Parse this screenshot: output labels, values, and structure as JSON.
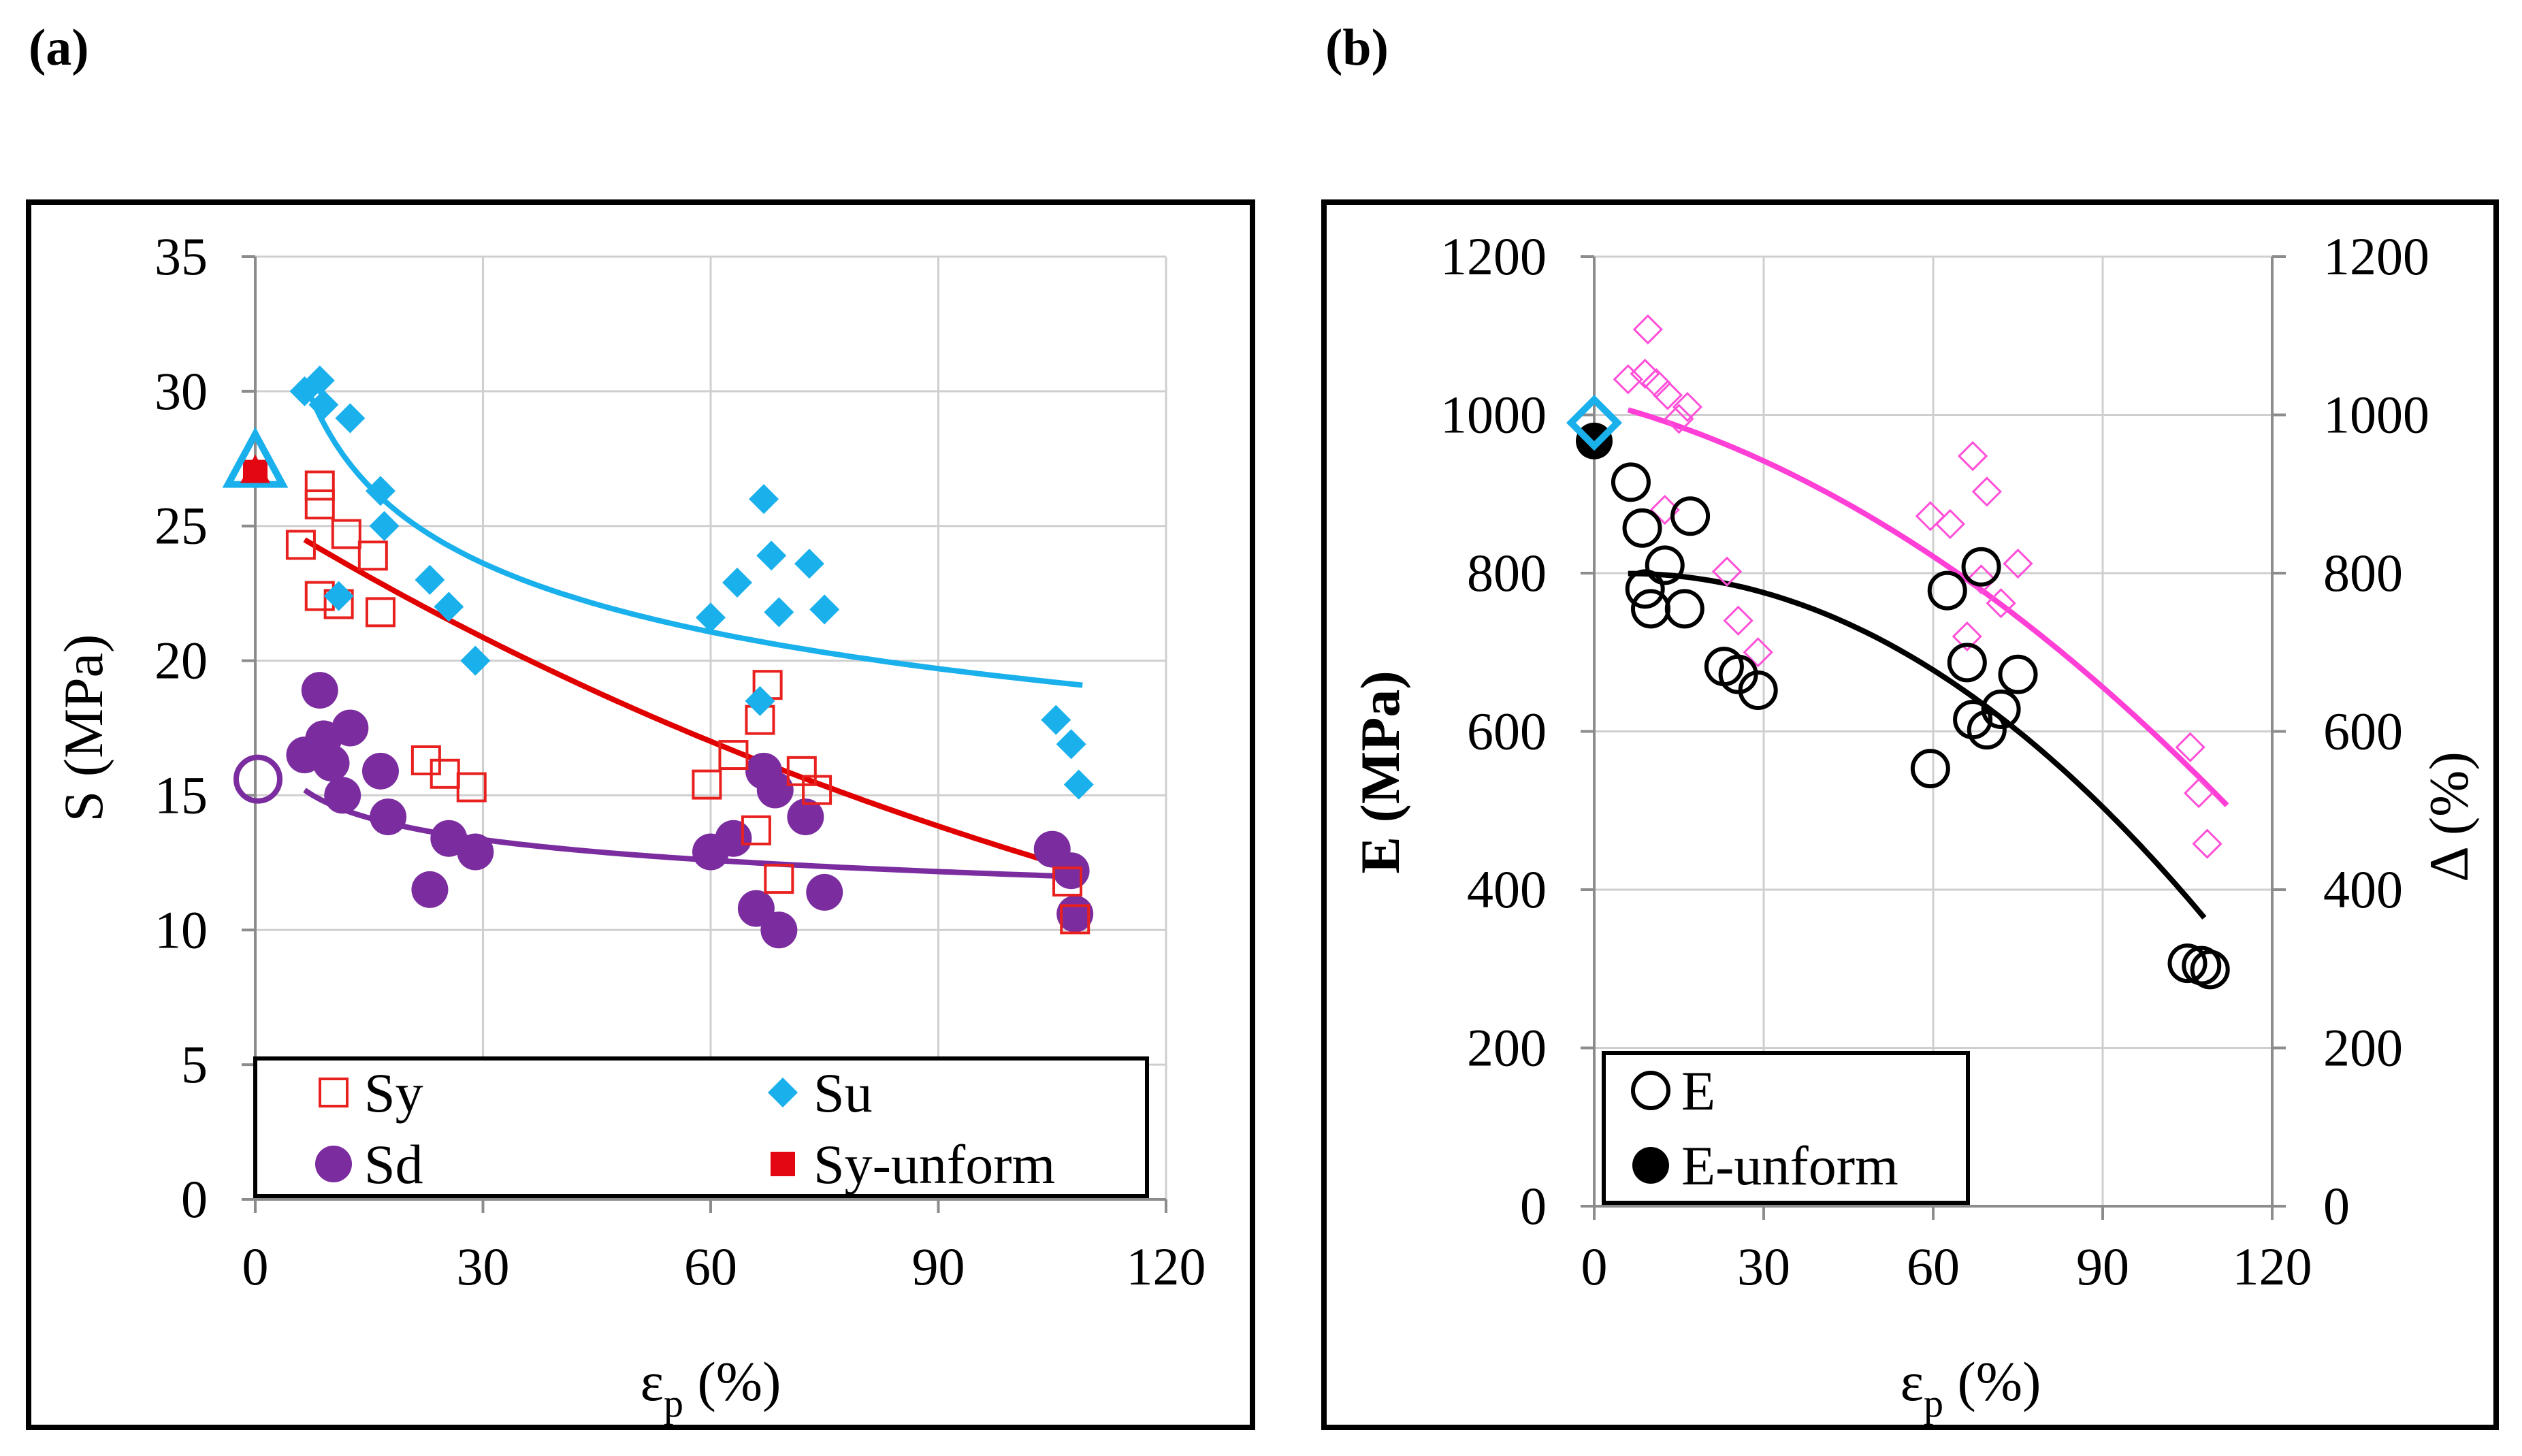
{
  "panel_labels": {
    "a": "(a)",
    "b": "(b)"
  },
  "colors": {
    "sy": "#e8201e",
    "su": "#1ab0ec",
    "sd": "#7b2da0",
    "sy_unform": "#e30613",
    "e": "#000000",
    "delta": "#ff4fd8",
    "su_fit": "#1ab0ec",
    "sy_fit": "#e00000",
    "sd_fit": "#7b2da0",
    "e_fit": "#000000",
    "delta_fit": "#ff3fd6"
  },
  "chart_data": [
    {
      "type": "scatter",
      "panel": "(a)",
      "xlabel_main": "ε",
      "xlabel_sub": "p",
      "xlabel_unit": " (%)",
      "ylabel": "S (MPa)",
      "xlim": [
        0,
        120
      ],
      "ylim": [
        0,
        35
      ],
      "xticks": [
        0,
        30,
        60,
        90,
        120
      ],
      "yticks": [
        0,
        5,
        10,
        15,
        20,
        25,
        30,
        35
      ],
      "grid": true,
      "legend_position": "bottom",
      "legend": [
        {
          "key": "sy",
          "label": "Sy"
        },
        {
          "key": "su",
          "label": "Su"
        },
        {
          "key": "sd",
          "label": "Sd"
        },
        {
          "key": "sy_unform",
          "label": "Sy-unform"
        }
      ],
      "series": [
        {
          "key": "sy",
          "name": "Sy",
          "marker": "open-square",
          "points": [
            [
              6,
              24.3
            ],
            [
              8.5,
              26.5
            ],
            [
              8.5,
              25.8
            ],
            [
              8.5,
              22.4
            ],
            [
              11,
              22.1
            ],
            [
              12,
              24.7
            ],
            [
              15.5,
              23.9
            ],
            [
              16.5,
              21.8
            ],
            [
              22.5,
              16.3
            ],
            [
              25,
              15.8
            ],
            [
              28.5,
              15.3
            ],
            [
              59.5,
              15.4
            ],
            [
              63,
              16.5
            ],
            [
              66,
              13.7
            ],
            [
              66.5,
              17.8
            ],
            [
              67.5,
              19.1
            ],
            [
              69,
              11.9
            ],
            [
              72,
              15.9
            ],
            [
              74,
              15.2
            ],
            [
              107,
              11.8
            ],
            [
              108,
              10.4
            ]
          ]
        },
        {
          "key": "su",
          "name": "Su",
          "marker": "diamond",
          "points": [
            [
              6.5,
              30
            ],
            [
              8.5,
              30.4
            ],
            [
              9,
              29.5
            ],
            [
              12.5,
              29
            ],
            [
              11,
              22.4
            ],
            [
              16.5,
              26.3
            ],
            [
              17,
              25
            ],
            [
              23,
              23
            ],
            [
              25.5,
              22
            ],
            [
              29,
              20
            ],
            [
              60,
              21.6
            ],
            [
              63.5,
              22.9
            ],
            [
              66.5,
              18.5
            ],
            [
              67,
              26
            ],
            [
              68,
              23.9
            ],
            [
              69,
              21.8
            ],
            [
              73,
              23.6
            ],
            [
              75,
              21.9
            ],
            [
              105.5,
              17.8
            ],
            [
              107.5,
              16.9
            ],
            [
              108.5,
              15.4
            ]
          ]
        },
        {
          "key": "sd",
          "name": "Sd",
          "marker": "filled-circle",
          "points": [
            [
              6.5,
              16.5
            ],
            [
              8.5,
              18.9
            ],
            [
              9,
              17.1
            ],
            [
              10,
              16.2
            ],
            [
              11.5,
              15
            ],
            [
              12.5,
              17.5
            ],
            [
              16.5,
              15.9
            ],
            [
              17.5,
              14.2
            ],
            [
              23,
              11.5
            ],
            [
              25.5,
              13.4
            ],
            [
              29,
              12.9
            ],
            [
              60,
              12.9
            ],
            [
              63,
              13.4
            ],
            [
              66,
              10.8
            ],
            [
              67,
              15.9
            ],
            [
              68.5,
              15.2
            ],
            [
              69,
              10
            ],
            [
              72.5,
              14.2
            ],
            [
              75,
              11.4
            ],
            [
              105,
              13
            ],
            [
              107.5,
              12.2
            ],
            [
              108,
              10.6
            ]
          ]
        },
        {
          "key": "sy_unform",
          "name": "Sy-unform",
          "marker": "filled-square",
          "points": [
            [
              0,
              27
            ]
          ]
        }
      ],
      "highlight_markers": [
        {
          "key": "su",
          "shape": "open-triangle",
          "x": 0,
          "y": 27.2
        },
        {
          "key": "sd",
          "shape": "open-circle",
          "x": 0,
          "y": 15.6
        }
      ],
      "trendlines": [
        {
          "key": "su_fit",
          "type": "power",
          "a": 41.4,
          "b": -0.165,
          "x_range": [
            6.5,
            109
          ]
        },
        {
          "key": "sy_fit",
          "type": "exponential",
          "a": 25.6,
          "b": -0.00682,
          "x_range": [
            6.5,
            109
          ]
        },
        {
          "key": "sd_fit",
          "type": "power",
          "a": 17.8,
          "b": -0.0845,
          "x_range": [
            6.5,
            109
          ]
        }
      ]
    },
    {
      "type": "scatter",
      "panel": "(b)",
      "xlabel_main": "ε",
      "xlabel_sub": "p",
      "xlabel_unit": " (%)",
      "ylabel": "E (MPa)",
      "y2label": "Δ (%)",
      "xlim": [
        0,
        120
      ],
      "ylim": [
        0,
        1200
      ],
      "y2lim": [
        0,
        1200
      ],
      "xticks": [
        0,
        30,
        60,
        90,
        120
      ],
      "yticks": [
        0,
        200,
        400,
        600,
        800,
        1000,
        1200
      ],
      "y2ticks": [
        0,
        200,
        400,
        600,
        800,
        1000,
        1200
      ],
      "grid": true,
      "legend_position": "bottom-left",
      "legend": [
        {
          "key": "e",
          "label": "E"
        },
        {
          "key": "e_unform",
          "label": "E-unform"
        }
      ],
      "series": [
        {
          "key": "e",
          "name": "E",
          "marker": "open-circle",
          "points": [
            [
              6.5,
              915
            ],
            [
              8.5,
              857
            ],
            [
              9,
              780
            ],
            [
              10,
              755
            ],
            [
              12.5,
              810
            ],
            [
              16,
              755
            ],
            [
              17,
              872
            ],
            [
              23,
              682
            ],
            [
              25.5,
              672
            ],
            [
              29,
              652
            ],
            [
              59.5,
              553
            ],
            [
              62.5,
              778
            ],
            [
              66,
              687
            ],
            [
              67,
              615
            ],
            [
              68.5,
              808
            ],
            [
              69.5,
              602
            ],
            [
              72,
              628
            ],
            [
              75,
              672
            ],
            [
              105,
              307
            ],
            [
              107.5,
              304
            ],
            [
              109,
              299
            ]
          ]
        },
        {
          "key": "delta",
          "name": "Δ",
          "marker": "open-diamond",
          "axis": "right",
          "points": [
            [
              6,
              1045
            ],
            [
              9,
              1052
            ],
            [
              9.5,
              1108
            ],
            [
              11,
              1040
            ],
            [
              13,
              1025
            ],
            [
              15,
              995
            ],
            [
              16.5,
              1010
            ],
            [
              12.5,
              880
            ],
            [
              23.5,
              802
            ],
            [
              25.5,
              740
            ],
            [
              29,
              700
            ],
            [
              59.5,
              872
            ],
            [
              63,
              862
            ],
            [
              66,
              720
            ],
            [
              67,
              948
            ],
            [
              68.5,
              792
            ],
            [
              69.5,
              903
            ],
            [
              72,
              762
            ],
            [
              75,
              812
            ],
            [
              105.5,
              580
            ],
            [
              107,
              522
            ],
            [
              108.5,
              458
            ]
          ]
        },
        {
          "key": "e_unform",
          "name": "E-unform",
          "marker": "filled-circle",
          "points": [
            [
              0,
              967
            ]
          ]
        }
      ],
      "highlight_markers": [
        {
          "key": "delta",
          "shape": "open-diamond-cyan",
          "x": 0,
          "y": 990
        }
      ],
      "trendlines": [
        {
          "key": "delta_fit",
          "type": "quadratic",
          "c0": 1018,
          "c1": -1.8,
          "c2": -0.0247,
          "x_range": [
            6,
            112
          ]
        },
        {
          "key": "e_fit",
          "type": "quadratic",
          "c0": 798,
          "c1": 0.5,
          "c2": -0.0418,
          "x_range": [
            6,
            108
          ]
        }
      ]
    }
  ]
}
